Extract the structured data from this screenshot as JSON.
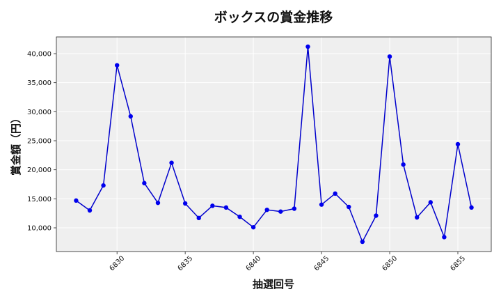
{
  "chart_data": {
    "type": "line",
    "title": "ボックスの賞金推移",
    "xlabel": "抽選回号",
    "ylabel": "賞金額（円）",
    "x": [
      6827,
      6828,
      6829,
      6830,
      6831,
      6832,
      6833,
      6834,
      6835,
      6836,
      6837,
      6838,
      6839,
      6840,
      6841,
      6842,
      6843,
      6844,
      6845,
      6846,
      6847,
      6848,
      6849,
      6850,
      6851,
      6852,
      6853,
      6854,
      6855,
      6856
    ],
    "series": [
      {
        "values": [
          14700,
          13000,
          17300,
          38000,
          29200,
          17700,
          14300,
          21200,
          14200,
          11700,
          13800,
          13500,
          11900,
          10100,
          13100,
          12800,
          13300,
          41200,
          14000,
          15900,
          13600,
          7600,
          12100,
          39500,
          20900,
          11800,
          14400,
          8400,
          24400,
          13500
        ]
      }
    ],
    "xlim": [
      6825.55,
      6857.45
    ],
    "ylim": [
      5920,
      42880
    ],
    "x_ticks": [
      6830,
      6835,
      6840,
      6845,
      6850,
      6855
    ],
    "x_tick_labels": [
      "6830",
      "6835",
      "6840",
      "6845",
      "6850",
      "6855"
    ],
    "y_ticks": [
      10000,
      15000,
      20000,
      25000,
      30000,
      35000,
      40000
    ],
    "y_tick_labels": [
      "10,000",
      "15,000",
      "20,000",
      "25,000",
      "30,000",
      "35,000",
      "40,000"
    ],
    "grid": true,
    "colors": {
      "line": "#0000cc",
      "marker": "#0000ee",
      "plot_bg": "#efefef",
      "grid": "#ffffff"
    }
  }
}
